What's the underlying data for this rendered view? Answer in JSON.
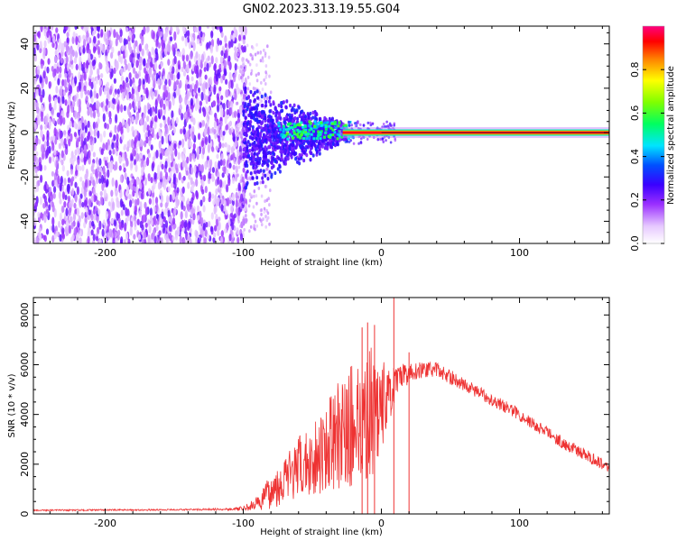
{
  "title": "GN02.2023.313.19.55.G04",
  "chart_data": [
    {
      "type": "heatmap",
      "xlabel": "Height of straight line (km)",
      "ylabel": "Frequency (Hz)",
      "xlim": [
        -252,
        165
      ],
      "ylim": [
        -50,
        48
      ],
      "xticks": [
        -200,
        -100,
        0,
        100
      ],
      "yticks": [
        -40,
        -20,
        0,
        20,
        40
      ],
      "grid": false,
      "colorbar": {
        "label": "Normalized spectral amplitude",
        "range": [
          0,
          1
        ],
        "ticks": [
          0.0,
          0.2,
          0.4,
          0.6,
          0.8
        ],
        "tick_labels": [
          "0.0",
          "0.2",
          "0.4",
          "0.6",
          "0.8"
        ],
        "colormap": [
          "#ffffff",
          "#9b30ff",
          "#4000ff",
          "#0000ff",
          "#00e5ff",
          "#00ff40",
          "#ffff00",
          "#ff8000",
          "#ff0000",
          "#ff0080"
        ]
      },
      "features": [
        {
          "x_range": [
            -252,
            -100
          ],
          "y_range": [
            -50,
            48
          ],
          "amplitude": [
            0.0,
            0.15
          ]
        },
        {
          "x_range": [
            -100,
            -30
          ],
          "y_range": [
            -25,
            15
          ],
          "amplitude": [
            0.1,
            0.3
          ]
        },
        {
          "x_range": [
            -60,
            -25
          ],
          "y_range": [
            -3,
            5
          ],
          "amplitude": [
            0.3,
            0.6
          ]
        },
        {
          "x_range": [
            -25,
            165
          ],
          "y_range": [
            -1,
            1
          ],
          "amplitude": [
            0.8,
            1.0
          ]
        }
      ]
    },
    {
      "type": "line",
      "xlabel": "Height of straight line (km)",
      "ylabel": "SNR (10 * v/v)",
      "xlim": [
        -252,
        165
      ],
      "ylim": [
        0,
        8700
      ],
      "xticks": [
        -200,
        -100,
        0,
        100
      ],
      "yticks": [
        0,
        2000,
        4000,
        6000,
        8000
      ],
      "grid": false,
      "series": [
        {
          "color": "#ee3333",
          "x": [
            -252,
            -225,
            -200,
            -175,
            -150,
            -125,
            -105,
            -100,
            -90,
            -80,
            -70,
            -60,
            -50,
            -40,
            -30,
            -20,
            -10,
            -5,
            0,
            5,
            10,
            20,
            30,
            40,
            50,
            60,
            70,
            80,
            90,
            100,
            110,
            120,
            130,
            140,
            150,
            165
          ],
          "y": [
            150,
            150,
            160,
            160,
            170,
            180,
            200,
            220,
            400,
            900,
            1400,
            1800,
            2200,
            2700,
            3200,
            3600,
            4000,
            4200,
            4400,
            4700,
            5200,
            5700,
            5800,
            5800,
            5500,
            5200,
            4900,
            4600,
            4300,
            4000,
            3600,
            3300,
            2900,
            2600,
            2300,
            1900
          ],
          "noise_amplitude": [
            30,
            30,
            30,
            30,
            30,
            40,
            60,
            90,
            300,
            700,
            1000,
            1300,
            1500,
            1800,
            2200,
            2600,
            2800,
            2500,
            2000,
            1200,
            700,
            400,
            300,
            300,
            300,
            250,
            250,
            250,
            250,
            250,
            250,
            250,
            250,
            250,
            250,
            250
          ],
          "spikes": [
            {
              "x": 9,
              "y": 8700
            },
            {
              "x": -10,
              "y": 7700
            },
            {
              "x": -14,
              "y": 7500
            },
            {
              "x": -5,
              "y": 7600
            },
            {
              "x": 20,
              "y": 6500
            }
          ]
        }
      ]
    }
  ]
}
